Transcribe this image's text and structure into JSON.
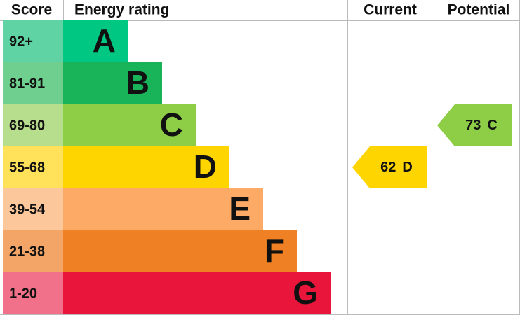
{
  "header": {
    "score": "Score",
    "energy_rating": "Energy rating",
    "current": "Current",
    "potential": "Potential"
  },
  "bands": [
    {
      "score": "92+",
      "letter": "A",
      "color": "#00c781",
      "score_color": "#5fd3a4"
    },
    {
      "score": "81-91",
      "letter": "B",
      "color": "#19b459",
      "score_color": "#6fcf8e"
    },
    {
      "score": "69-80",
      "letter": "C",
      "color": "#8dce46",
      "score_color": "#b7de8c"
    },
    {
      "score": "55-68",
      "letter": "D",
      "color": "#ffd500",
      "score_color": "#ffe25a"
    },
    {
      "score": "39-54",
      "letter": "E",
      "color": "#fcaa65",
      "score_color": "#fdc79c"
    },
    {
      "score": "21-38",
      "letter": "F",
      "color": "#ef8023",
      "score_color": "#f2a566"
    },
    {
      "score": "1-20",
      "letter": "G",
      "color": "#e9153b",
      "score_color": "#f07189"
    }
  ],
  "current": {
    "value": 62,
    "letter": "D"
  },
  "potential": {
    "value": 73,
    "letter": "C"
  }
}
